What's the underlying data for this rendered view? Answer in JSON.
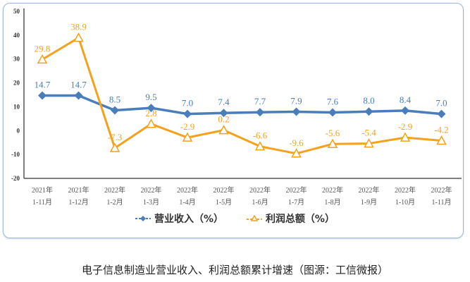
{
  "chart_data": {
    "type": "line",
    "categories": [
      [
        "2021年",
        "1-11月"
      ],
      [
        "2021年",
        "1-12月"
      ],
      [
        "2022年",
        "1-2月"
      ],
      [
        "2022年",
        "1-3月"
      ],
      [
        "2022年",
        "1-4月"
      ],
      [
        "2022年",
        "1-5月"
      ],
      [
        "2022年",
        "1-6月"
      ],
      [
        "2022年",
        "1-7月"
      ],
      [
        "2022年",
        "1-8月"
      ],
      [
        "2022年",
        "1-9月"
      ],
      [
        "2022年",
        "1-10月"
      ],
      [
        "2022年",
        "1-11月"
      ]
    ],
    "series": [
      {
        "name": "营业收入（%）",
        "color": "#4a7ebb",
        "marker": "diamond",
        "values": [
          14.7,
          14.7,
          8.5,
          9.5,
          7.0,
          7.4,
          7.7,
          7.9,
          7.6,
          8.0,
          8.4,
          7.0
        ]
      },
      {
        "name": "利润总额（%）",
        "color": "#f5a11c",
        "marker": "triangle",
        "values": [
          29.8,
          38.9,
          -7.3,
          2.8,
          -2.9,
          0.2,
          -6.6,
          -9.6,
          -5.6,
          -5.4,
          -2.9,
          -4.2
        ]
      }
    ],
    "ylim": [
      -20,
      50
    ],
    "yticks": [
      -20,
      -10,
      0,
      10,
      20,
      30,
      40,
      50
    ],
    "grid": false,
    "legend_position": "bottom"
  },
  "caption": "电子信息制造业营业收入、利润总额累计增速（图源：工信微报）"
}
